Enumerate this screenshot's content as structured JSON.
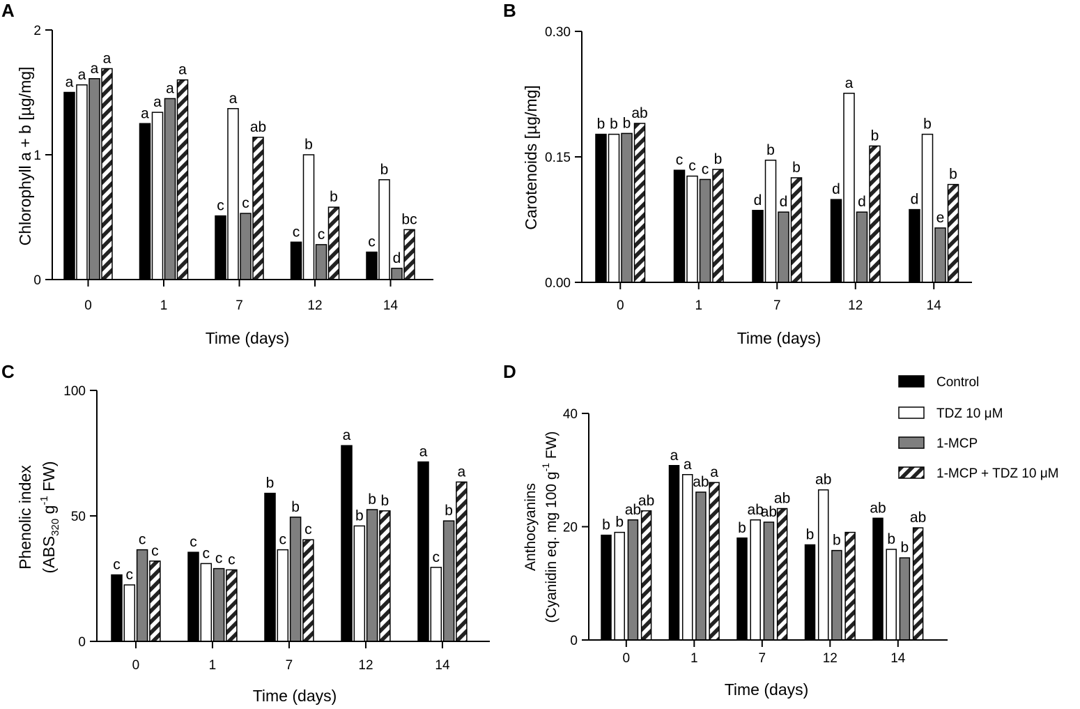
{
  "legend": {
    "series": [
      {
        "name": "Control",
        "style": "solid-black",
        "color": "#000000"
      },
      {
        "name": "TDZ 10 μM",
        "style": "white",
        "color": "#ffffff"
      },
      {
        "name": "1-MCP",
        "style": "gray",
        "color": "#7f7f7f"
      },
      {
        "name": "1-MCP + TDZ 10 μM",
        "style": "hatched",
        "color": "#333333"
      }
    ],
    "placement": "right of panel D"
  },
  "chart_data": [
    {
      "panel": "A",
      "type": "bar",
      "title": "",
      "xlabel": "Time (days)",
      "ylabel": "Chlorophyll a + b [µg/mg]",
      "ylim": [
        0,
        2
      ],
      "yticks": [
        "0",
        "1",
        "2"
      ],
      "categories": [
        "0",
        "1",
        "7",
        "12",
        "14"
      ],
      "series": [
        {
          "name": "Control",
          "values": [
            1.5,
            1.25,
            0.51,
            0.3,
            0.22
          ],
          "letters": [
            "a",
            "a",
            "c",
            "c",
            "c"
          ]
        },
        {
          "name": "TDZ 10 μM",
          "values": [
            1.56,
            1.34,
            1.37,
            1.0,
            0.8
          ],
          "letters": [
            "a",
            "a",
            "a",
            "b",
            "b"
          ]
        },
        {
          "name": "1-MCP",
          "values": [
            1.61,
            1.45,
            0.53,
            0.28,
            0.09
          ],
          "letters": [
            "a",
            "a",
            "c",
            "c",
            "d"
          ]
        },
        {
          "name": "1-MCP + TDZ 10 μM",
          "values": [
            1.69,
            1.6,
            1.14,
            0.58,
            0.4
          ],
          "letters": [
            "a",
            "a",
            "ab",
            "b",
            "bc"
          ]
        }
      ]
    },
    {
      "panel": "B",
      "type": "bar",
      "title": "",
      "xlabel": "Time (days)",
      "ylabel": "Carotenoids [µg/mg]",
      "ylim": [
        0,
        0.3
      ],
      "yticks": [
        "0.00",
        "0.15",
        "0.30"
      ],
      "categories": [
        "0",
        "1",
        "7",
        "12",
        "14"
      ],
      "series": [
        {
          "name": "Control",
          "values": [
            0.177,
            0.134,
            0.086,
            0.099,
            0.087
          ],
          "letters": [
            "b",
            "c",
            "d",
            "d",
            "d"
          ]
        },
        {
          "name": "TDZ 10 μM",
          "values": [
            0.177,
            0.127,
            0.146,
            0.226,
            0.177
          ],
          "letters": [
            "b",
            "c",
            "b",
            "a",
            "b"
          ]
        },
        {
          "name": "1-MCP",
          "values": [
            0.178,
            0.123,
            0.084,
            0.084,
            0.065
          ],
          "letters": [
            "b",
            "c",
            "d",
            "d",
            "e"
          ]
        },
        {
          "name": "1-MCP + TDZ 10 μM",
          "values": [
            0.19,
            0.135,
            0.125,
            0.163,
            0.117
          ],
          "letters": [
            "ab",
            "b",
            "b",
            "b",
            "b"
          ]
        }
      ]
    },
    {
      "panel": "C",
      "type": "bar",
      "title": "",
      "xlabel": "Time (days)",
      "ylabel_line1": "Phenolic index",
      "ylabel_line2_a": "(ABS",
      "ylabel_line2_sub": "320",
      "ylabel_line2_b": " g",
      "ylabel_line2_sup": "-1",
      "ylabel_line2_c": " FW)",
      "ylim": [
        0,
        100
      ],
      "yticks": [
        "0",
        "50",
        "100"
      ],
      "categories": [
        "0",
        "1",
        "7",
        "12",
        "14"
      ],
      "series": [
        {
          "name": "Control",
          "values": [
            26.5,
            35.5,
            59,
            78,
            71.5
          ],
          "letters": [
            "c",
            "c",
            "b",
            "a",
            "a"
          ]
        },
        {
          "name": "TDZ 10 μM",
          "values": [
            22.5,
            31,
            36.5,
            46,
            29.5
          ],
          "letters": [
            "c",
            "c",
            "c",
            "b",
            "c"
          ]
        },
        {
          "name": "1-MCP",
          "values": [
            36.5,
            29,
            49.5,
            52.5,
            48
          ],
          "letters": [
            "c",
            "c",
            "b",
            "b",
            "b"
          ]
        },
        {
          "name": "1-MCP + TDZ 10 μM",
          "values": [
            32,
            28.5,
            40.5,
            52,
            63.5
          ],
          "letters": [
            "c",
            "c",
            "c",
            "b",
            "a"
          ]
        }
      ]
    },
    {
      "panel": "D",
      "type": "bar",
      "title": "",
      "xlabel": "Time (days)",
      "ylabel_line1": "Anthocyanins",
      "ylabel_line2_a": "(Cyanidin eq. mg 100 g",
      "ylabel_line2_sup": "-1",
      "ylabel_line2_c": " FW)",
      "ylim": [
        0,
        40
      ],
      "yticks": [
        "0",
        "20",
        "40"
      ],
      "categories": [
        "0",
        "1",
        "7",
        "12",
        "14"
      ],
      "series": [
        {
          "name": "Control",
          "values": [
            18.5,
            30.8,
            18,
            16.8,
            21.5
          ],
          "letters": [
            "b",
            "a",
            "b",
            "b",
            "ab"
          ]
        },
        {
          "name": "TDZ 10 μM",
          "values": [
            19,
            29.2,
            21.2,
            26.5,
            16
          ],
          "letters": [
            "b",
            "a",
            "ab",
            "ab",
            "b"
          ]
        },
        {
          "name": "1-MCP",
          "values": [
            21.2,
            26.1,
            20.8,
            15.8,
            14.5
          ],
          "letters": [
            "ab",
            "ab",
            "ab",
            "b",
            "b"
          ]
        },
        {
          "name": "1-MCP + TDZ 10 μM",
          "values": [
            22.8,
            27.8,
            23.2,
            19,
            19.8
          ],
          "letters": [
            "ab",
            "a",
            "ab",
            "",
            "ab"
          ]
        }
      ]
    }
  ]
}
